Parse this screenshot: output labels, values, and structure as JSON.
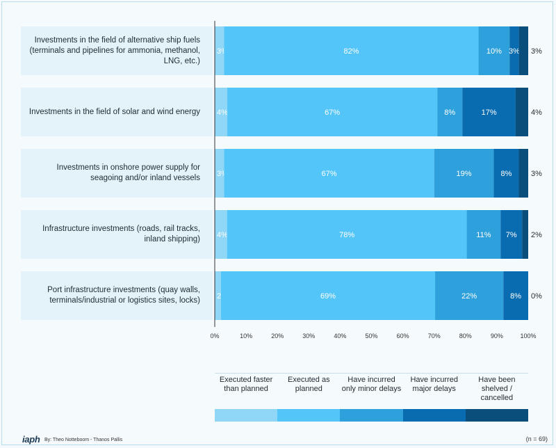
{
  "chart_data": {
    "type": "bar",
    "orientation": "horizontal-stacked-100",
    "categories": [
      "Investments in the field of alternative ship fuels (terminals and pipelines for ammonia, methanol, LNG, etc.)",
      "Investments in the field of solar and wind energy",
      "Investments in onshore power supply for seagoing and/or inland vessels",
      "Infrastructure investments (roads, rail tracks, inland shipping)",
      "Port infrastructure investments (quay walls, terminals/industrial or logistics sites, locks)"
    ],
    "series": [
      {
        "name": "Executed faster than planned",
        "color": "#8fd6f7",
        "values": [
          3,
          4,
          3,
          4,
          2
        ],
        "labels": [
          "3%",
          "4%",
          "3%",
          "4%",
          "2%"
        ]
      },
      {
        "name": "Executed as planned",
        "color": "#54c5f8",
        "values": [
          82,
          67,
          67,
          78,
          69
        ],
        "labels": [
          "82%",
          "67%",
          "67%",
          "78%",
          "69%"
        ]
      },
      {
        "name": "Have incurred only minor delays",
        "color": "#2ea0dc",
        "values": [
          10,
          8,
          19,
          11,
          22
        ],
        "labels": [
          "10%",
          "8%",
          "19%",
          "11%",
          "22%"
        ]
      },
      {
        "name": "Have incurred major delays",
        "color": "#0a6cb0",
        "values": [
          3,
          17,
          8,
          7,
          8
        ],
        "labels": [
          "3%",
          "17%",
          "8%",
          "7%",
          "8%"
        ]
      },
      {
        "name": "Have been shelved / cancelled",
        "color": "#0a4e7c",
        "values": [
          3,
          4,
          3,
          2,
          0
        ],
        "labels": [
          "3%",
          "4%",
          "3%",
          "2%",
          "0%"
        ]
      }
    ],
    "xlim": [
      0,
      100
    ],
    "xticks": [
      "0%",
      "10%",
      "20%",
      "30%",
      "40%",
      "50%",
      "60%",
      "70%",
      "80%",
      "90%",
      "100%"
    ],
    "legend_position": "bottom",
    "grid": false
  },
  "legend": {
    "items": [
      "Executed faster than planned",
      "Executed as planned",
      "Have incurred only minor delays",
      "Have incurred major delays",
      "Have been shelved / cancelled"
    ]
  },
  "footer": {
    "logo": "iaph",
    "byline": "By: Theo Notteboom - Thanos Pallis",
    "n_note": "(n = 69)"
  }
}
